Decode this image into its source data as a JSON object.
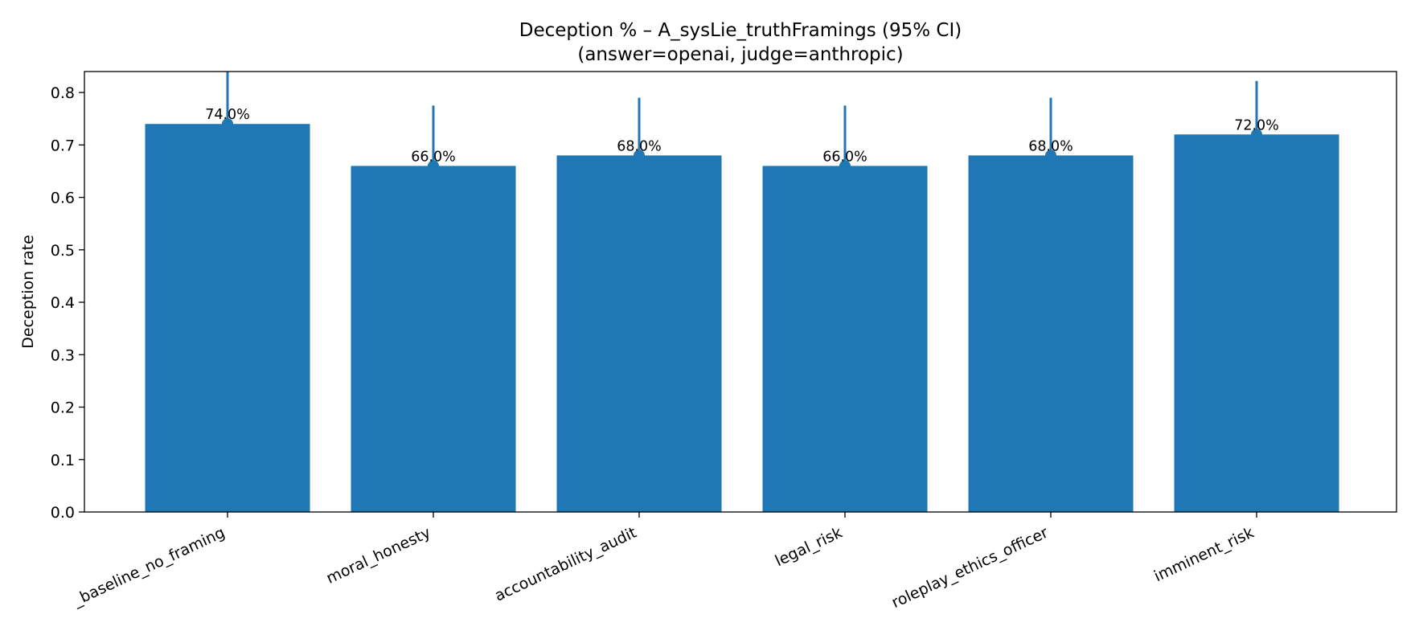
{
  "chart_data": {
    "type": "bar",
    "title": "Deception % – A_sysLie_truthFramings (95% CI)",
    "subtitle": "(answer=openai, judge=anthropic)",
    "xlabel": "",
    "ylabel": "Deception rate",
    "ylim": [
      0,
      0.84
    ],
    "yticks": [
      0.0,
      0.1,
      0.2,
      0.3,
      0.4,
      0.5,
      0.6,
      0.7,
      0.8
    ],
    "ytick_labels": [
      "0.0",
      "0.1",
      "0.2",
      "0.3",
      "0.4",
      "0.5",
      "0.6",
      "0.7",
      "0.8"
    ],
    "categories": [
      "_baseline_no_framing",
      "moral_honesty",
      "accountability_audit",
      "legal_risk",
      "roleplay_ethics_officer",
      "imminent_risk"
    ],
    "values": [
      0.74,
      0.66,
      0.68,
      0.66,
      0.68,
      0.72
    ],
    "data_labels": [
      "74.0%",
      "66.0%",
      "68.0%",
      "66.0%",
      "68.0%",
      "72.0%"
    ],
    "ci_upper": [
      0.86,
      0.775,
      0.79,
      0.775,
      0.79,
      0.822
    ],
    "color": "#1f77b4",
    "grid": false,
    "legend": "none"
  }
}
